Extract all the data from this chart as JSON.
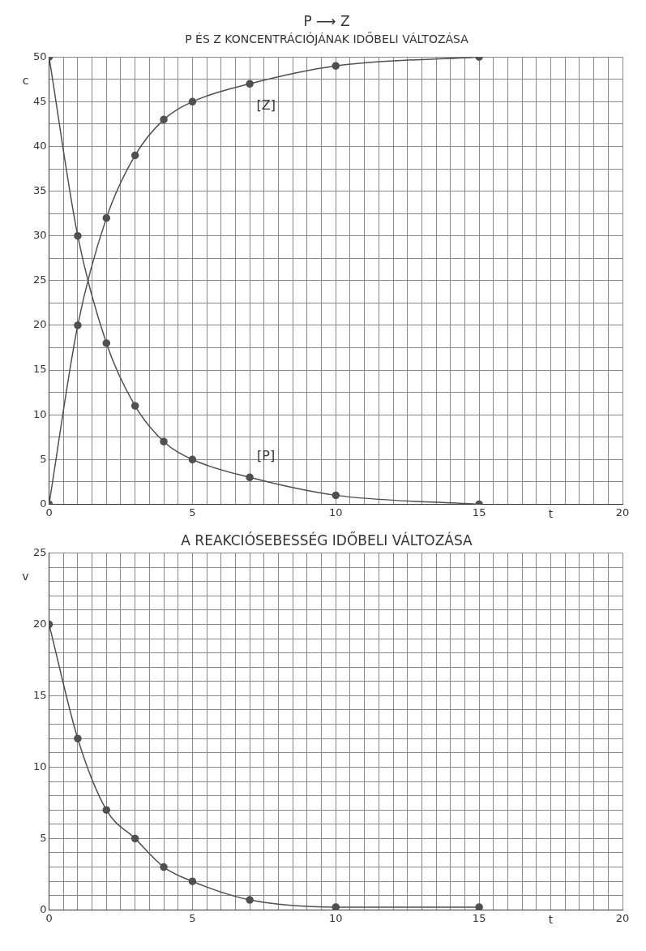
{
  "chart_data": [
    {
      "type": "line",
      "title": "P ⟶ Z",
      "subtitle": "P ÉS Z KONCENTRÁCIÓJÁNAK IDŐBELI VÁLTOZÁSA",
      "xlabel": "t",
      "ylabel": "c",
      "x": [
        0,
        1,
        2,
        3,
        4,
        5,
        7,
        10,
        15
      ],
      "series": [
        {
          "name": "[P]",
          "color": "#505050",
          "values": [
            50,
            30,
            18,
            11,
            7,
            5,
            3,
            1,
            0
          ]
        },
        {
          "name": "[Z]",
          "color": "#505050",
          "values": [
            0,
            20,
            32,
            39,
            43,
            45,
            47,
            49,
            50
          ]
        }
      ],
      "xlim": [
        0,
        20
      ],
      "xticks": [
        0,
        {
          "value": 0.5,
          "label": null
        },
        {
          "value": 1,
          "label": null
        },
        {
          "value": 1.5,
          "label": null
        },
        {
          "value": 2,
          "label": null
        },
        {
          "value": 2.5,
          "label": null
        },
        {
          "value": 3,
          "label": null
        },
        {
          "value": 3.5,
          "label": null
        },
        {
          "value": 4,
          "label": null
        },
        {
          "value": 4.5,
          "label": null
        },
        5,
        {
          "value": 5.5,
          "label": null
        },
        {
          "value": 6,
          "label": null
        },
        {
          "value": 6.5,
          "label": null
        },
        {
          "value": 7,
          "label": null
        },
        {
          "value": 7.5,
          "label": null
        },
        {
          "value": 8,
          "label": null
        },
        {
          "value": 8.5,
          "label": null
        },
        {
          "value": 9,
          "label": null
        },
        {
          "value": 9.5,
          "label": null
        },
        10,
        {
          "value": 10.5,
          "label": null
        },
        {
          "value": 11,
          "label": null
        },
        {
          "value": 11.5,
          "label": null
        },
        {
          "value": 12,
          "label": null
        },
        {
          "value": 12.5,
          "label": null
        },
        {
          "value": 13,
          "label": null
        },
        {
          "value": 13.5,
          "label": null
        },
        {
          "value": 14,
          "label": null
        },
        {
          "value": 14.5,
          "label": null
        },
        15,
        {
          "value": 15.5,
          "label": null
        },
        {
          "value": 16,
          "label": null
        },
        {
          "value": 16.5,
          "label": null
        },
        {
          "value": 17,
          "label": null
        },
        {
          "value": 17.5,
          "label": null
        },
        {
          "value": 18,
          "label": null
        },
        {
          "value": 18.5,
          "label": null
        },
        {
          "value": 19,
          "label": null
        },
        {
          "value": 19.5,
          "label": null
        },
        20
      ],
      "ylim": [
        0,
        50
      ],
      "yticks": [
        0,
        {
          "value": 2.5,
          "label": null
        },
        5,
        {
          "value": 7.5,
          "label": null
        },
        10,
        {
          "value": 12.5,
          "label": null
        },
        15,
        {
          "value": 17.5,
          "label": null
        },
        20,
        {
          "value": 22.5,
          "label": null
        },
        25,
        {
          "value": 27.5,
          "label": null
        },
        30,
        {
          "value": 32.5,
          "label": null
        },
        35,
        {
          "value": 37.5,
          "label": null
        },
        40,
        {
          "value": 42.5,
          "label": null
        },
        45,
        {
          "value": 47.5,
          "label": null
        },
        50
      ],
      "grid": true,
      "marker": "circle"
    },
    {
      "type": "line",
      "title": "A REAKCIÓSEBESSÉG IDŐBELI VÁLTOZÁSA",
      "xlabel": "t",
      "ylabel": "v",
      "x": [
        0,
        1,
        2,
        3,
        4,
        5,
        7,
        10,
        15
      ],
      "series": [
        {
          "color": "#505050",
          "values": [
            20,
            12,
            7,
            5,
            3,
            2,
            0.7,
            0.2,
            0.2
          ]
        }
      ],
      "xlim": [
        0,
        20
      ],
      "xticks": [
        0,
        {
          "value": 0.5,
          "label": null
        },
        {
          "value": 1,
          "label": null
        },
        {
          "value": 1.5,
          "label": null
        },
        {
          "value": 2,
          "label": null
        },
        {
          "value": 2.5,
          "label": null
        },
        {
          "value": 3,
          "label": null
        },
        {
          "value": 3.5,
          "label": null
        },
        {
          "value": 4,
          "label": null
        },
        {
          "value": 4.5,
          "label": null
        },
        5,
        {
          "value": 5.5,
          "label": null
        },
        {
          "value": 6,
          "label": null
        },
        {
          "value": 6.5,
          "label": null
        },
        {
          "value": 7,
          "label": null
        },
        {
          "value": 7.5,
          "label": null
        },
        {
          "value": 8,
          "label": null
        },
        {
          "value": 8.5,
          "label": null
        },
        {
          "value": 9,
          "label": null
        },
        {
          "value": 9.5,
          "label": null
        },
        10,
        {
          "value": 10.5,
          "label": null
        },
        {
          "value": 11,
          "label": null
        },
        {
          "value": 11.5,
          "label": null
        },
        {
          "value": 12,
          "label": null
        },
        {
          "value": 12.5,
          "label": null
        },
        {
          "value": 13,
          "label": null
        },
        {
          "value": 13.5,
          "label": null
        },
        {
          "value": 14,
          "label": null
        },
        {
          "value": 14.5,
          "label": null
        },
        15,
        {
          "value": 15.5,
          "label": null
        },
        {
          "value": 16,
          "label": null
        },
        {
          "value": 16.5,
          "label": null
        },
        {
          "value": 17,
          "label": null
        },
        {
          "value": 17.5,
          "label": null
        },
        {
          "value": 18,
          "label": null
        },
        {
          "value": 18.5,
          "label": null
        },
        {
          "value": 19,
          "label": null
        },
        {
          "value": 19.5,
          "label": null
        },
        20
      ],
      "ylim": [
        0,
        25
      ],
      "yticks": [
        0,
        {
          "value": 1,
          "label": null
        },
        {
          "value": 2,
          "label": null
        },
        {
          "value": 3,
          "label": null
        },
        {
          "value": 4,
          "label": null
        },
        5,
        {
          "value": 6,
          "label": null
        },
        {
          "value": 7,
          "label": null
        },
        {
          "value": 8,
          "label": null
        },
        {
          "value": 9,
          "label": null
        },
        10,
        {
          "value": 11,
          "label": null
        },
        {
          "value": 12,
          "label": null
        },
        {
          "value": 13,
          "label": null
        },
        {
          "value": 14,
          "label": null
        },
        15,
        {
          "value": 16,
          "label": null
        },
        {
          "value": 17,
          "label": null
        },
        {
          "value": 18,
          "label": null
        },
        {
          "value": 19,
          "label": null
        },
        20,
        {
          "value": 21,
          "label": null
        },
        {
          "value": 22,
          "label": null
        },
        {
          "value": 23,
          "label": null
        },
        {
          "value": 24,
          "label": null
        },
        25
      ],
      "grid": true,
      "marker": "circle"
    }
  ]
}
